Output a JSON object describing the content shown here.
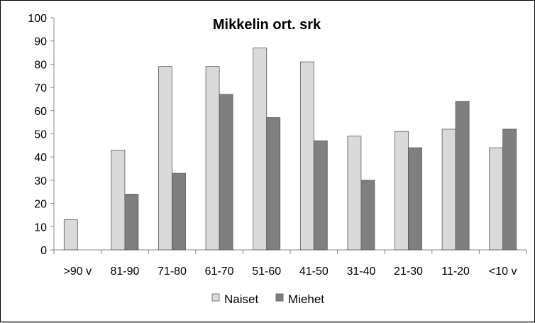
{
  "chart_data": {
    "type": "bar",
    "title": "Mikkelin ort. srk",
    "xlabel": "",
    "ylabel": "",
    "categories": [
      ">90 v",
      "81-90",
      "71-80",
      "61-70",
      "51-60",
      "41-50",
      "31-40",
      "21-30",
      "11-20",
      "<10 v"
    ],
    "series": [
      {
        "name": "Naiset",
        "values": [
          13,
          43,
          79,
          79,
          87,
          81,
          49,
          51,
          52,
          44
        ],
        "color": "#d9d9d9"
      },
      {
        "name": "Miehet",
        "values": [
          0,
          24,
          33,
          67,
          57,
          47,
          30,
          44,
          64,
          52
        ],
        "color": "#7f7f7f"
      }
    ],
    "ylim": [
      0,
      100
    ],
    "yticks": [
      0,
      10,
      20,
      30,
      40,
      50,
      60,
      70,
      80,
      90,
      100
    ],
    "grid": false,
    "legend_position": "bottom"
  }
}
